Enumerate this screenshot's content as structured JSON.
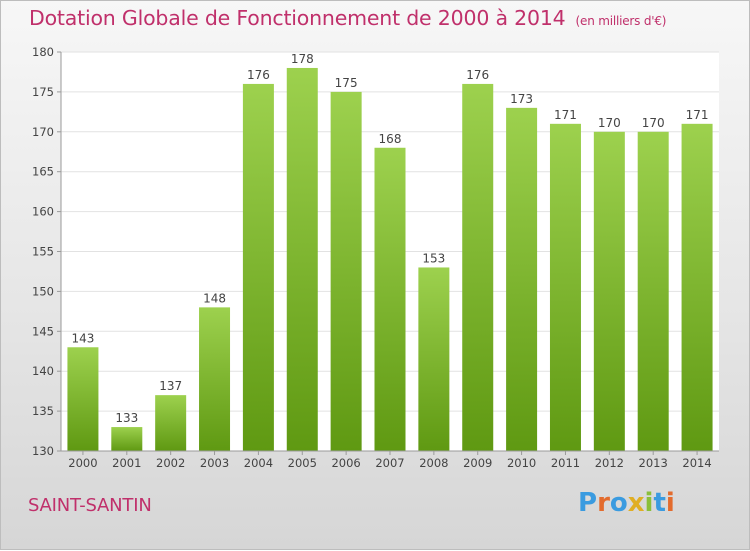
{
  "title": "Dotation Globale de Fonctionnement de 2000 à 2014",
  "unit": "(en milliers d'€)",
  "commune": "SAINT-SANTIN",
  "brand": "Proxiti",
  "colors": {
    "bar_top": "#9dd14e",
    "bar_bottom": "#5f9912",
    "title": "#c0306b"
  },
  "chart_data": {
    "type": "bar",
    "title": "Dotation Globale de Fonctionnement de 2000 à 2014",
    "subtitle": "(en milliers d'€)",
    "categories": [
      "2000",
      "2001",
      "2002",
      "2003",
      "2004",
      "2005",
      "2006",
      "2007",
      "2008",
      "2009",
      "2010",
      "2011",
      "2012",
      "2013",
      "2014"
    ],
    "values": [
      143,
      133,
      137,
      148,
      176,
      178,
      175,
      168,
      153,
      176,
      173,
      171,
      170,
      170,
      171
    ],
    "ylim": [
      130,
      180
    ],
    "yticks": [
      130,
      135,
      140,
      145,
      150,
      155,
      160,
      165,
      170,
      175,
      180
    ],
    "grid": true,
    "legend": "none"
  }
}
